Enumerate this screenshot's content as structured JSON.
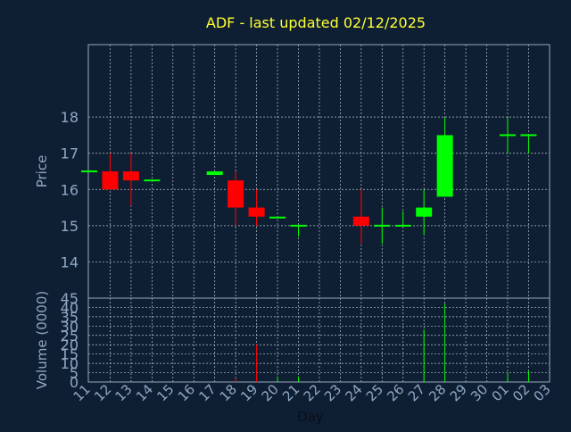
{
  "chart_data": {
    "type": "candlestick",
    "title": "ADF - last updated 02/12/2025",
    "xlabel": "Day",
    "price_ylabel": "Price",
    "volume_ylabel": "Volume (0000)",
    "grid": true,
    "colors": {
      "background": "#0f1f33",
      "title": "#ffff33",
      "axis_text": "#8fa8c4",
      "grid": "#b8c2d0",
      "frame": "#9aa8bc",
      "up": "#00ff00",
      "down": "#ff0000"
    },
    "price_axis": {
      "min": 13,
      "max": 20,
      "ticks": [
        14,
        15,
        16,
        17,
        18
      ]
    },
    "volume_axis": {
      "min": 0,
      "max": 45,
      "ticks": [
        0,
        5,
        10,
        15,
        20,
        25,
        30,
        35,
        40,
        45
      ]
    },
    "x_ticks": [
      "11",
      "12",
      "13",
      "14",
      "15",
      "16",
      "17",
      "18",
      "19",
      "20",
      "21",
      "22",
      "23",
      "24",
      "25",
      "26",
      "27",
      "28",
      "29",
      "30",
      "01",
      "02",
      "03"
    ],
    "candles": [
      {
        "day": "11",
        "open": 16.5,
        "high": 16.5,
        "low": 16.5,
        "close": 16.5,
        "volume": 0
      },
      {
        "day": "12",
        "open": 16.5,
        "high": 17.0,
        "low": 16.0,
        "close": 16.0,
        "volume": 0
      },
      {
        "day": "13",
        "open": 16.5,
        "high": 17.0,
        "low": 15.55,
        "close": 16.25,
        "volume": 0
      },
      {
        "day": "14",
        "open": 16.25,
        "high": 16.25,
        "low": 16.25,
        "close": 16.25,
        "volume": 0
      },
      {
        "day": "17",
        "open": 16.4,
        "high": 16.5,
        "low": 16.4,
        "close": 16.5,
        "volume": 0
      },
      {
        "day": "18",
        "open": 16.25,
        "high": 16.5,
        "low": 15.0,
        "close": 15.5,
        "volume": 2
      },
      {
        "day": "19",
        "open": 15.5,
        "high": 16.0,
        "low": 15.0,
        "close": 15.25,
        "volume": 20
      },
      {
        "day": "20",
        "open": 15.2,
        "high": 15.25,
        "low": 15.2,
        "close": 15.25,
        "volume": 3
      },
      {
        "day": "21",
        "open": 15.0,
        "high": 15.0,
        "low": 14.7,
        "close": 15.0,
        "volume": 3
      },
      {
        "day": "24",
        "open": 15.25,
        "high": 16.0,
        "low": 14.5,
        "close": 15.0,
        "volume": 0
      },
      {
        "day": "25",
        "open": 15.0,
        "high": 15.5,
        "low": 14.5,
        "close": 15.0,
        "volume": 0
      },
      {
        "day": "26",
        "open": 15.0,
        "high": 15.4,
        "low": 15.0,
        "close": 15.0,
        "volume": 0
      },
      {
        "day": "27",
        "open": 15.25,
        "high": 16.0,
        "low": 14.75,
        "close": 15.5,
        "volume": 28
      },
      {
        "day": "28",
        "open": 15.8,
        "high": 18.0,
        "low": 15.8,
        "close": 17.5,
        "volume": 42
      },
      {
        "day": "01",
        "open": 17.5,
        "high": 18.0,
        "low": 17.0,
        "close": 17.5,
        "volume": 5
      },
      {
        "day": "02",
        "open": 17.5,
        "high": 17.5,
        "low": 17.0,
        "close": 17.5,
        "volume": 6
      }
    ]
  }
}
